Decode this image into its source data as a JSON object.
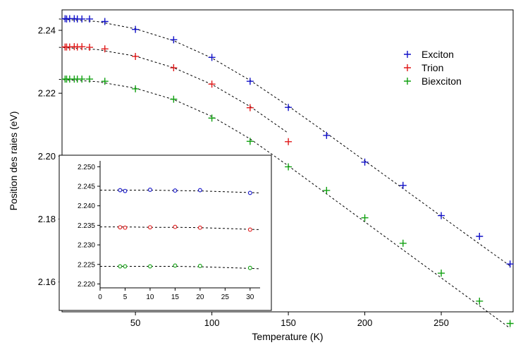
{
  "chart_data": [
    {
      "type": "scatter",
      "xlabel": "Temperature (K)",
      "ylabel": "Position des raies (eV)",
      "xlim": [
        2,
        297
      ],
      "ylim": [
        2.1505,
        2.2465
      ],
      "xticks": [
        50,
        100,
        150,
        200,
        250
      ],
      "yticks": [
        2.16,
        2.18,
        2.2,
        2.22,
        2.24
      ],
      "grid": false,
      "legend": "top-right",
      "marker": "plus",
      "fit": "dashed",
      "series": [
        {
          "name": "Exciton",
          "color": "#1010c8",
          "x": [
            4,
            5,
            7,
            10,
            12,
            15,
            20,
            30,
            50,
            75,
            100,
            125,
            150,
            175,
            200,
            225,
            250,
            275,
            295
          ],
          "y": [
            2.2437,
            2.2436,
            2.2437,
            2.2437,
            2.2436,
            2.2436,
            2.2436,
            2.2428,
            2.2403,
            2.237,
            2.2314,
            2.2238,
            2.2155,
            2.2066,
            2.1981,
            2.1907,
            2.1811,
            2.1745,
            2.1657
          ],
          "fit_x": [
            0,
            25,
            50,
            75,
            100,
            125,
            150,
            175,
            200,
            225,
            250,
            275,
            295
          ],
          "fit_y": [
            2.2436,
            2.2428,
            2.2405,
            2.2367,
            2.2312,
            2.2241,
            2.2159,
            2.2073,
            2.1985,
            2.1897,
            2.1809,
            2.1721,
            2.1651
          ]
        },
        {
          "name": "Trion",
          "color": "#e01818",
          "x": [
            4,
            5,
            7,
            10,
            12,
            15,
            20,
            30,
            50,
            75,
            100,
            125,
            150
          ],
          "y": [
            2.2347,
            2.2347,
            2.2347,
            2.2348,
            2.2347,
            2.2348,
            2.2346,
            2.2341,
            2.2317,
            2.2281,
            2.2229,
            2.2154,
            2.2046
          ],
          "fit_x": [
            0,
            25,
            50,
            75,
            100,
            125,
            150
          ],
          "fit_y": [
            2.2346,
            2.2339,
            2.2318,
            2.2281,
            2.2228,
            2.2158,
            2.2073
          ]
        },
        {
          "name": "Biexciton",
          "color": "#10a010",
          "x": [
            4,
            5,
            7,
            10,
            12,
            15,
            20,
            30,
            50,
            75,
            100,
            125,
            150,
            175,
            200,
            225,
            250,
            275,
            295
          ],
          "y": [
            2.2245,
            2.2245,
            2.2245,
            2.2245,
            2.2245,
            2.2245,
            2.2245,
            2.2238,
            2.2214,
            2.2181,
            2.2121,
            2.2047,
            2.1966,
            2.1891,
            2.1804,
            2.1723,
            2.1628,
            2.1539,
            2.1468
          ],
          "fit_x": [
            0,
            25,
            50,
            75,
            100,
            125,
            150,
            175,
            200,
            225,
            250,
            275,
            295
          ],
          "fit_y": [
            2.2244,
            2.2237,
            2.2216,
            2.218,
            2.2126,
            2.2055,
            2.1969,
            2.188,
            2.1791,
            2.1702,
            2.1613,
            2.1524,
            2.1453
          ]
        }
      ]
    },
    {
      "type": "scatter",
      "inset": true,
      "xlabel": "",
      "ylabel": "",
      "xlim": [
        0,
        32
      ],
      "ylim": [
        2.219,
        2.2515
      ],
      "xticks": [
        0,
        5,
        10,
        15,
        20,
        25,
        30
      ],
      "yticks": [
        2.22,
        2.225,
        2.23,
        2.235,
        2.24,
        2.245,
        2.25
      ],
      "grid": false,
      "marker": "circle",
      "fit": "dashed",
      "series": [
        {
          "color": "#1010c8",
          "x": [
            4,
            5,
            10,
            15,
            20,
            30
          ],
          "y": [
            2.244,
            2.2438,
            2.2441,
            2.2439,
            2.244,
            2.2433
          ],
          "fit_x": [
            0,
            5,
            10,
            15,
            20,
            25,
            32
          ],
          "fit_y": [
            2.244,
            2.244,
            2.244,
            2.2439,
            2.2438,
            2.2436,
            2.2433
          ]
        },
        {
          "color": "#e01818",
          "x": [
            4,
            5,
            10,
            15,
            20,
            30
          ],
          "y": [
            2.2345,
            2.2344,
            2.2345,
            2.2346,
            2.2344,
            2.2339
          ],
          "fit_x": [
            0,
            5,
            10,
            15,
            20,
            25,
            32
          ],
          "fit_y": [
            2.2346,
            2.2346,
            2.2345,
            2.2345,
            2.2344,
            2.2342,
            2.2339
          ]
        },
        {
          "color": "#10a010",
          "x": [
            4,
            5,
            10,
            15,
            20,
            30
          ],
          "y": [
            2.2245,
            2.2245,
            2.2245,
            2.2247,
            2.2246,
            2.2241
          ],
          "fit_x": [
            0,
            5,
            10,
            15,
            20,
            25,
            32
          ],
          "fit_y": [
            2.2245,
            2.2245,
            2.2245,
            2.2245,
            2.2244,
            2.2242,
            2.2239
          ]
        }
      ]
    }
  ]
}
